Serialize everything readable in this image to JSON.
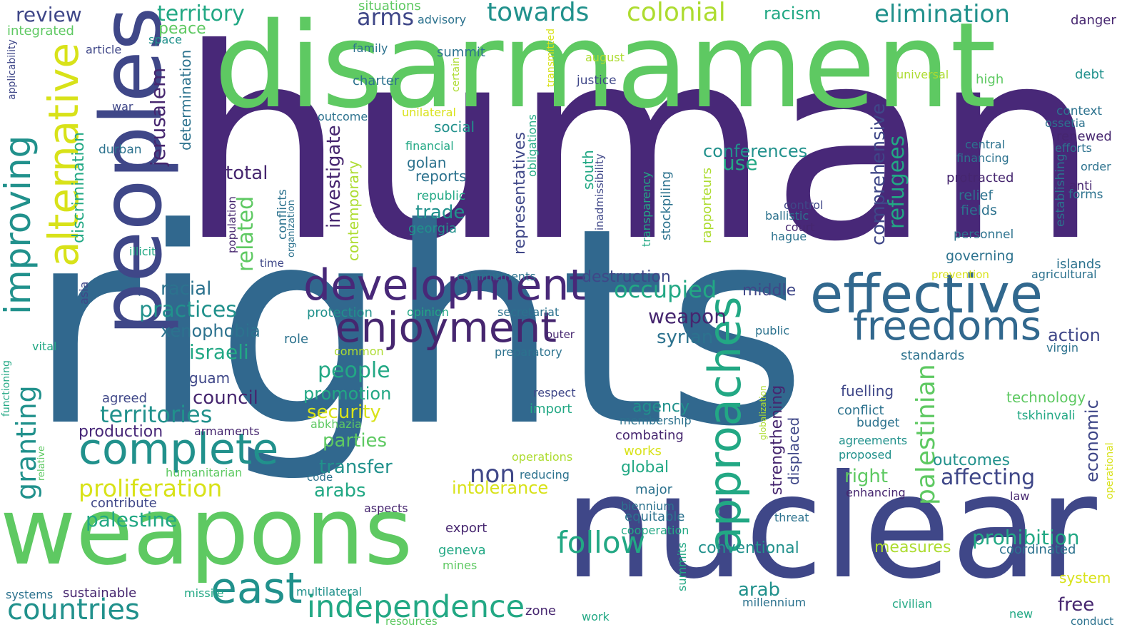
{
  "palette": {
    "background": "#ffffff",
    "dark_purple": "#46266f",
    "purple": "#482878",
    "indigo": "#3f4788",
    "blue": "#31688e",
    "steel_blue": "#2c728e",
    "teal": "#21918c",
    "sea_green": "#22a884",
    "green": "#5ec962",
    "lime": "#addc30",
    "yellow": "#d8e219"
  },
  "words": [
    {
      "text": "human",
      "color": "#482878"
    },
    {
      "text": "rights",
      "color": "#31688e"
    },
    {
      "text": "disarmament",
      "color": "#5ec962"
    },
    {
      "text": "nuclear",
      "color": "#3f4788"
    },
    {
      "text": "weapons",
      "color": "#5ec962"
    },
    {
      "text": "peoples",
      "color": "#3f4788"
    },
    {
      "text": "effective",
      "color": "#31688e"
    },
    {
      "text": "development",
      "color": "#482878"
    },
    {
      "text": "enjoyment",
      "color": "#46266f"
    },
    {
      "text": "complete",
      "color": "#21918c"
    },
    {
      "text": "freedoms",
      "color": "#31688e"
    },
    {
      "text": "approaches",
      "color": "#22a884"
    },
    {
      "text": "alternative",
      "color": "#d8e219"
    },
    {
      "text": "improving",
      "color": "#21918c"
    },
    {
      "text": "east",
      "color": "#21918c"
    },
    {
      "text": "independence",
      "color": "#22a884"
    },
    {
      "text": "countries",
      "color": "#21918c"
    },
    {
      "text": "follow",
      "color": "#22a884"
    },
    {
      "text": "colonial",
      "color": "#addc30"
    },
    {
      "text": "towards",
      "color": "#21918c"
    },
    {
      "text": "elimination",
      "color": "#21918c"
    },
    {
      "text": "territory",
      "color": "#22a884"
    },
    {
      "text": "review",
      "color": "#3f4788"
    },
    {
      "text": "arms",
      "color": "#3f4788"
    },
    {
      "text": "racism",
      "color": "#22a884"
    },
    {
      "text": "territories",
      "color": "#21918c"
    },
    {
      "text": "proliferation",
      "color": "#d8e219"
    },
    {
      "text": "palestine",
      "color": "#22a884"
    },
    {
      "text": "granting",
      "color": "#21918c"
    },
    {
      "text": "palestinian",
      "color": "#5ec962"
    },
    {
      "text": "occupied",
      "color": "#22a884"
    },
    {
      "text": "practices",
      "color": "#21918c"
    },
    {
      "text": "israeli",
      "color": "#22a884"
    },
    {
      "text": "people",
      "color": "#22a884"
    },
    {
      "text": "prohibition",
      "color": "#22a884"
    },
    {
      "text": "affecting",
      "color": "#3f4788"
    },
    {
      "text": "transfer",
      "color": "#21918c"
    },
    {
      "text": "trade",
      "color": "#21918c"
    },
    {
      "text": "security",
      "color": "#d8e219"
    },
    {
      "text": "non",
      "color": "#3f4788"
    },
    {
      "text": "refugees",
      "color": "#22a884"
    },
    {
      "text": "comprehensive",
      "color": "#3f4788"
    },
    {
      "text": "jerusalem",
      "color": "#46266f"
    },
    {
      "text": "discrimination",
      "color": "#22a884"
    },
    {
      "text": "related",
      "color": "#5ec962"
    },
    {
      "text": "investigate",
      "color": "#46266f"
    },
    {
      "text": "contemporary",
      "color": "#addc30"
    },
    {
      "text": "representatives",
      "color": "#3f4788"
    },
    {
      "text": "conferences",
      "color": "#21918c"
    },
    {
      "text": "use",
      "color": "#22a884"
    },
    {
      "text": "weapon",
      "color": "#46266f"
    },
    {
      "text": "syrian",
      "color": "#2c728e"
    },
    {
      "text": "xenophobia",
      "color": "#2c728e"
    },
    {
      "text": "racial",
      "color": "#2c728e"
    },
    {
      "text": "total",
      "color": "#46266f"
    },
    {
      "text": "council",
      "color": "#46266f"
    },
    {
      "text": "promotion",
      "color": "#22a884"
    },
    {
      "text": "parties",
      "color": "#5ec962"
    },
    {
      "text": "arabs",
      "color": "#22a884"
    },
    {
      "text": "intolerance",
      "color": "#d8e219"
    },
    {
      "text": "production",
      "color": "#482878"
    },
    {
      "text": "economic",
      "color": "#3f4788"
    },
    {
      "text": "action",
      "color": "#3f4788"
    },
    {
      "text": "arab",
      "color": "#21918c"
    },
    {
      "text": "free",
      "color": "#46266f"
    },
    {
      "text": "conventional",
      "color": "#21918c"
    },
    {
      "text": "measures",
      "color": "#addc30"
    },
    {
      "text": "right",
      "color": "#5ec962"
    },
    {
      "text": "outcomes",
      "color": "#21918c"
    },
    {
      "text": "global",
      "color": "#22a884"
    },
    {
      "text": "agency",
      "color": "#21918c"
    },
    {
      "text": "destruction",
      "color": "#3f4788"
    },
    {
      "text": "middle",
      "color": "#3f4788"
    },
    {
      "text": "strengthening",
      "color": "#46266f"
    },
    {
      "text": "displaced",
      "color": "#3f4788"
    },
    {
      "text": "south",
      "color": "#22a884"
    },
    {
      "text": "fuelling",
      "color": "#3f4788"
    },
    {
      "text": "technology",
      "color": "#5ec962"
    },
    {
      "text": "determination",
      "color": "#2c728e"
    },
    {
      "text": "peace",
      "color": "#5ec962"
    },
    {
      "text": "integrated",
      "color": "#5ec962"
    },
    {
      "text": "situations",
      "color": "#5ec962"
    },
    {
      "text": "advisory",
      "color": "#2c728e"
    },
    {
      "text": "summit",
      "color": "#2c728e"
    },
    {
      "text": "family",
      "color": "#2c728e"
    },
    {
      "text": "charter",
      "color": "#2c728e"
    },
    {
      "text": "justice",
      "color": "#3f4788"
    },
    {
      "text": "august",
      "color": "#addc30"
    },
    {
      "text": "universal",
      "color": "#addc30"
    },
    {
      "text": "high",
      "color": "#5ec962"
    },
    {
      "text": "debt",
      "color": "#21918c"
    },
    {
      "text": "danger",
      "color": "#46266f"
    },
    {
      "text": "space",
      "color": "#21918c"
    },
    {
      "text": "article",
      "color": "#3f4788"
    },
    {
      "text": "applicability",
      "color": "#3f4788"
    },
    {
      "text": "war",
      "color": "#3f4788"
    },
    {
      "text": "durban",
      "color": "#2c728e"
    },
    {
      "text": "outcome",
      "color": "#2c728e"
    },
    {
      "text": "unilateral",
      "color": "#d8e219"
    },
    {
      "text": "social",
      "color": "#21918c"
    },
    {
      "text": "financial",
      "color": "#22a884"
    },
    {
      "text": "golan",
      "color": "#2c728e"
    },
    {
      "text": "reports",
      "color": "#2c728e"
    },
    {
      "text": "republic",
      "color": "#22a884"
    },
    {
      "text": "georgia",
      "color": "#21918c"
    },
    {
      "text": "obligations",
      "color": "#22a884"
    },
    {
      "text": "transmitted",
      "color": "#d8e219"
    },
    {
      "text": "certain",
      "color": "#addc30"
    },
    {
      "text": "context",
      "color": "#2c728e"
    },
    {
      "text": "ossetia",
      "color": "#2c728e"
    },
    {
      "text": "renewed",
      "color": "#46266f"
    },
    {
      "text": "efforts",
      "color": "#2c728e"
    },
    {
      "text": "order",
      "color": "#2c728e"
    },
    {
      "text": "anti",
      "color": "#46266f"
    },
    {
      "text": "forms",
      "color": "#2c728e"
    },
    {
      "text": "central",
      "color": "#2c728e"
    },
    {
      "text": "financing",
      "color": "#2c728e"
    },
    {
      "text": "protracted",
      "color": "#46266f"
    },
    {
      "text": "relief",
      "color": "#2c728e"
    },
    {
      "text": "fields",
      "color": "#2c728e"
    },
    {
      "text": "personnel",
      "color": "#2c728e"
    },
    {
      "text": "governing",
      "color": "#2c728e"
    },
    {
      "text": "establishing",
      "color": "#2c728e"
    },
    {
      "text": "islands",
      "color": "#2c728e"
    },
    {
      "text": "agricultural",
      "color": "#2c728e"
    },
    {
      "text": "control",
      "color": "#3f4788"
    },
    {
      "text": "ballistic",
      "color": "#2c728e"
    },
    {
      "text": "court",
      "color": "#46266f"
    },
    {
      "text": "hague",
      "color": "#2c728e"
    },
    {
      "text": "transparency",
      "color": "#22a884"
    },
    {
      "text": "inadmissibility",
      "color": "#3f4788"
    },
    {
      "text": "stockpiling",
      "color": "#2c728e"
    },
    {
      "text": "rapporteurs",
      "color": "#addc30"
    },
    {
      "text": "population",
      "color": "#46266f"
    },
    {
      "text": "conflicts",
      "color": "#2c728e"
    },
    {
      "text": "organization",
      "color": "#2c728e"
    },
    {
      "text": "time",
      "color": "#3f4788"
    },
    {
      "text": "illicit",
      "color": "#22a884"
    },
    {
      "text": "asia",
      "color": "#3f4788"
    },
    {
      "text": "vital",
      "color": "#22a884"
    },
    {
      "text": "role",
      "color": "#2c728e"
    },
    {
      "text": "common",
      "color": "#addc30"
    },
    {
      "text": "protection",
      "color": "#21918c"
    },
    {
      "text": "opinion",
      "color": "#22a884"
    },
    {
      "text": "secretariat",
      "color": "#2c728e"
    },
    {
      "text": "commitments",
      "color": "#2c728e"
    },
    {
      "text": "prevention",
      "color": "#d8e219"
    },
    {
      "text": "outer",
      "color": "#46266f"
    },
    {
      "text": "preparatory",
      "color": "#2c728e"
    },
    {
      "text": "public",
      "color": "#2c728e"
    },
    {
      "text": "virgin",
      "color": "#2c728e"
    },
    {
      "text": "standards",
      "color": "#2c728e"
    },
    {
      "text": "guam",
      "color": "#3f4788"
    },
    {
      "text": "agreed",
      "color": "#3f4788"
    },
    {
      "text": "armaments",
      "color": "#46266f"
    },
    {
      "text": "functioning",
      "color": "#22a884"
    },
    {
      "text": "relative",
      "color": "#5ec962"
    },
    {
      "text": "humanitarian",
      "color": "#5ec962"
    },
    {
      "text": "contribute",
      "color": "#3f4788"
    },
    {
      "text": "respect",
      "color": "#3f4788"
    },
    {
      "text": "import",
      "color": "#22a884"
    },
    {
      "text": "abkhazia",
      "color": "#5ec962"
    },
    {
      "text": "operations",
      "color": "#addc30"
    },
    {
      "text": "code",
      "color": "#2c728e"
    },
    {
      "text": "reducing",
      "color": "#2c728e"
    },
    {
      "text": "aspects",
      "color": "#46266f"
    },
    {
      "text": "membership",
      "color": "#2c728e"
    },
    {
      "text": "combating",
      "color": "#46266f"
    },
    {
      "text": "works",
      "color": "#d8e219"
    },
    {
      "text": "major",
      "color": "#2c728e"
    },
    {
      "text": "biennium",
      "color": "#2c728e"
    },
    {
      "text": "equitable",
      "color": "#2c728e"
    },
    {
      "text": "cooperation",
      "color": "#22a884"
    },
    {
      "text": "globalization",
      "color": "#addc30"
    },
    {
      "text": "threat",
      "color": "#2c728e"
    },
    {
      "text": "conflict",
      "color": "#2c728e"
    },
    {
      "text": "budget",
      "color": "#2c728e"
    },
    {
      "text": "agreements",
      "color": "#21918c"
    },
    {
      "text": "proposed",
      "color": "#21918c"
    },
    {
      "text": "enhancing",
      "color": "#46266f"
    },
    {
      "text": "law",
      "color": "#46266f"
    },
    {
      "text": "coordinated",
      "color": "#2c728e"
    },
    {
      "text": "tskhinvali",
      "color": "#22a884"
    },
    {
      "text": "operational",
      "color": "#d8e219"
    },
    {
      "text": "system",
      "color": "#d8e219"
    },
    {
      "text": "export",
      "color": "#46266f"
    },
    {
      "text": "geneva",
      "color": "#22a884"
    },
    {
      "text": "mines",
      "color": "#5ec962"
    },
    {
      "text": "summits",
      "color": "#22a884"
    },
    {
      "text": "zone",
      "color": "#46266f"
    },
    {
      "text": "work",
      "color": "#22a884"
    },
    {
      "text": "millennium",
      "color": "#2c728e"
    },
    {
      "text": "civilian",
      "color": "#22a884"
    },
    {
      "text": "new",
      "color": "#22a884"
    },
    {
      "text": "conduct",
      "color": "#2c728e"
    },
    {
      "text": "systems",
      "color": "#2c728e"
    },
    {
      "text": "sustainable",
      "color": "#46266f"
    },
    {
      "text": "missile",
      "color": "#22a884"
    },
    {
      "text": "multilateral",
      "color": "#21918c"
    },
    {
      "text": "resources",
      "color": "#5ec962"
    }
  ]
}
